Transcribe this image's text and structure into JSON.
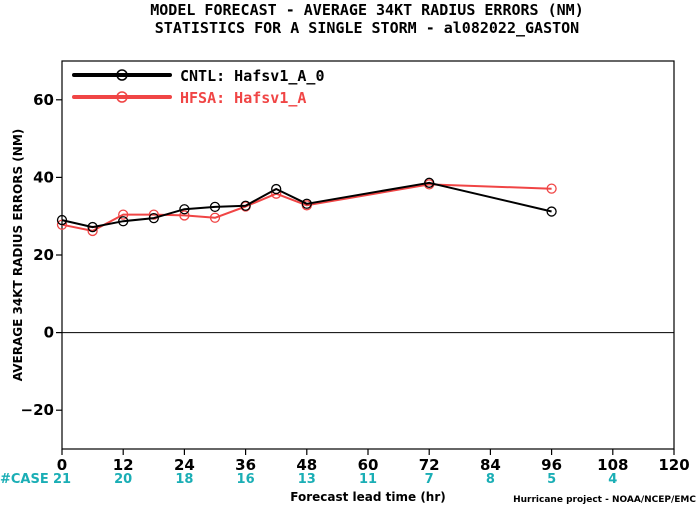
{
  "title_line1": "MODEL FORECAST - AVERAGE 34KT RADIUS ERRORS (NM)",
  "title_line2": "STATISTICS FOR A SINGLE STORM - al082022_GASTON",
  "credit": "Hurricane project - NOAA/NCEP/EMC",
  "case_label": "#CASE",
  "colors": {
    "cntl": "#000000",
    "hfsa": "#f04545",
    "cases": "#1aaeb5"
  },
  "chart_data": {
    "type": "line",
    "xlabel": "Forecast lead time (hr)",
    "ylabel": "AVERAGE 34KT RADIUS ERRORS (NM)",
    "xlim": [
      0,
      120
    ],
    "ylim": [
      -30,
      70
    ],
    "xticks": [
      0,
      12,
      24,
      36,
      48,
      60,
      72,
      84,
      96,
      108,
      120
    ],
    "yticks": [
      -20,
      0,
      20,
      40,
      60
    ],
    "zero_line": true,
    "grid": false,
    "legend_position": "top-left",
    "series": [
      {
        "name": "CNTL: Hafsv1_A_0",
        "x": [
          0,
          6,
          12,
          18,
          24,
          30,
          36,
          42,
          48,
          72,
          96
        ],
        "y": [
          29.0,
          27.2,
          28.7,
          29.5,
          31.8,
          32.4,
          32.7,
          37.0,
          33.2,
          38.6,
          31.2
        ]
      },
      {
        "name": "HFSA: Hafsv1_A",
        "x": [
          0,
          6,
          12,
          18,
          24,
          30,
          36,
          42,
          48,
          72,
          96
        ],
        "y": [
          27.8,
          26.2,
          30.4,
          30.4,
          30.2,
          29.6,
          32.5,
          35.8,
          32.8,
          38.2,
          37.1
        ]
      }
    ],
    "cases": [
      {
        "x": 0,
        "n": "21"
      },
      {
        "x": 12,
        "n": "20"
      },
      {
        "x": 24,
        "n": "18"
      },
      {
        "x": 36,
        "n": "16"
      },
      {
        "x": 48,
        "n": "13"
      },
      {
        "x": 60,
        "n": "11"
      },
      {
        "x": 72,
        "n": "7"
      },
      {
        "x": 84,
        "n": "8"
      },
      {
        "x": 96,
        "n": "5"
      },
      {
        "x": 108,
        "n": "4"
      }
    ]
  }
}
